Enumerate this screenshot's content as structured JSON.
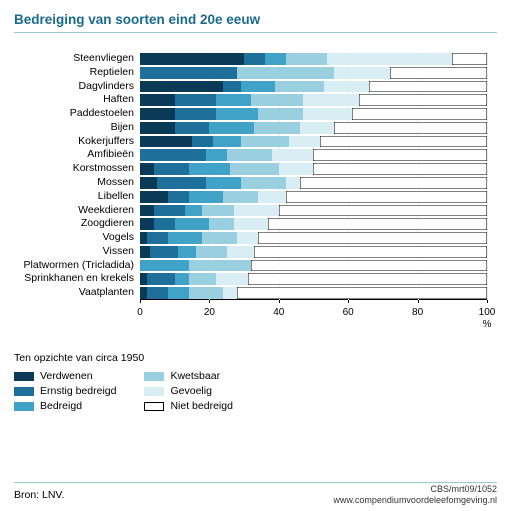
{
  "title": "Bedreiging van soorten eind 20e eeuw",
  "title_color": "#1a6a8e",
  "underline_color": "#9bc6d3",
  "chart": {
    "type": "stacked-bar-horizontal",
    "x_ticks": [
      0,
      20,
      40,
      60,
      80,
      100
    ],
    "x_unit": "%",
    "background_color": "#ffffff",
    "grid_color": "#ebebeb",
    "series": [
      {
        "key": "s1",
        "label": "Verdwenen",
        "color": "#0a3a56"
      },
      {
        "key": "s2",
        "label": "Ernstig bedreigd",
        "color": "#1f6f9b"
      },
      {
        "key": "s3",
        "label": "Bedreigd",
        "color": "#3fa2c6"
      },
      {
        "key": "s4",
        "label": "Kwetsbaar",
        "color": "#9acfe0"
      },
      {
        "key": "s5",
        "label": "Gevoelig",
        "color": "#d9edf5"
      },
      {
        "key": "s6",
        "label": "Niet bedreigd",
        "color": "#ffffff",
        "outline": "#000000"
      }
    ],
    "categories": [
      {
        "label": "Steenvliegen",
        "values": [
          30,
          6,
          6,
          12,
          36,
          10
        ]
      },
      {
        "label": "Reptielen",
        "values": [
          0,
          28,
          0,
          28,
          16,
          28
        ]
      },
      {
        "label": "Dagvlinders",
        "values": [
          24,
          5,
          10,
          14,
          13,
          34
        ]
      },
      {
        "label": "Haften",
        "values": [
          10,
          12,
          10,
          15,
          16,
          37
        ]
      },
      {
        "label": "Paddestoelen",
        "values": [
          10,
          12,
          12,
          13,
          14,
          39
        ]
      },
      {
        "label": "Bijen",
        "values": [
          10,
          10,
          13,
          13,
          10,
          44
        ]
      },
      {
        "label": "Kokerjuffers",
        "values": [
          15,
          6,
          8,
          14,
          9,
          48
        ]
      },
      {
        "label": "Amfibieën",
        "values": [
          0,
          19,
          6,
          13,
          12,
          50
        ]
      },
      {
        "label": "Korstmossen",
        "values": [
          4,
          10,
          12,
          14,
          10,
          50
        ]
      },
      {
        "label": "Mossen",
        "values": [
          5,
          14,
          10,
          13,
          4,
          54
        ]
      },
      {
        "label": "Libellen",
        "values": [
          8,
          6,
          10,
          10,
          8,
          58
        ]
      },
      {
        "label": "Weekdieren",
        "values": [
          4,
          9,
          5,
          9,
          13,
          60
        ]
      },
      {
        "label": "Zoogdieren",
        "values": [
          4,
          6,
          10,
          7,
          10,
          63
        ]
      },
      {
        "label": "Vogels",
        "values": [
          2,
          6,
          10,
          10,
          6,
          66
        ]
      },
      {
        "label": "Vissen",
        "values": [
          3,
          8,
          5,
          9,
          8,
          67
        ]
      },
      {
        "label": "Platwormen (Tricladida)",
        "values": [
          0,
          0,
          14,
          18,
          0,
          68
        ]
      },
      {
        "label": "Sprinkhanen en krekels",
        "values": [
          2,
          8,
          4,
          8,
          9,
          69
        ]
      },
      {
        "label": "Vaatplanten",
        "values": [
          2,
          6,
          6,
          10,
          4,
          72
        ]
      }
    ]
  },
  "legend": {
    "title": "Ten opzichte van circa 1950"
  },
  "bron": "Bron: LNV.",
  "footer_code": "CBS/mrt09/1052",
  "footer_url": "www.compendiumvoordeleefomgeving.nl"
}
